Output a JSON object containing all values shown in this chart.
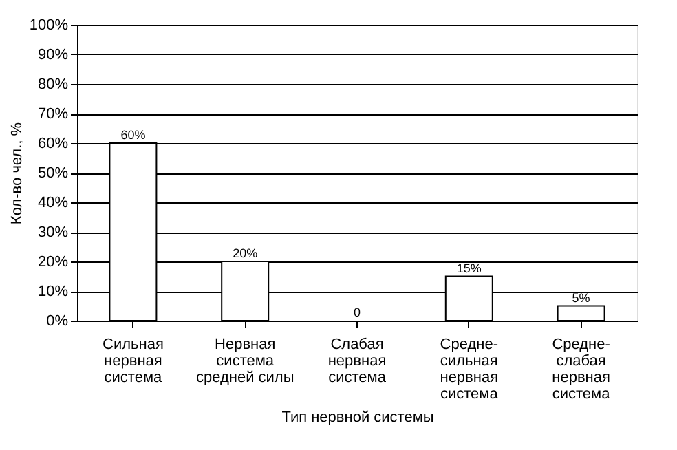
{
  "chart_data": {
    "type": "bar",
    "xlabel": "Тип нервной системы",
    "ylabel": "Кол-во чел., %",
    "categories": [
      "Сильная\nнервная\nсистема",
      "Нервная\nсистема\nсредней силы",
      "Слабая\nнервная\nсистема",
      "Средне-\nсильная\nнервная\nсистема",
      "Средне-\nслабая\nнервная\nсистема"
    ],
    "values": [
      60,
      20,
      0,
      15,
      5
    ],
    "value_labels": [
      "60%",
      "20%",
      "0",
      "15%",
      "5%"
    ],
    "color": "#ffffff",
    "ylim": [
      0,
      100
    ],
    "yticks": [
      {
        "value": 0,
        "label": "0%"
      },
      {
        "value": 10,
        "label": "10%"
      },
      {
        "value": 20,
        "label": "20%"
      },
      {
        "value": 30,
        "label": "30%"
      },
      {
        "value": 40,
        "label": "40%"
      },
      {
        "value": 50,
        "label": "50%"
      },
      {
        "value": 60,
        "label": "60%"
      },
      {
        "value": 70,
        "label": "70%"
      },
      {
        "value": 80,
        "label": "80%"
      },
      {
        "value": 90,
        "label": "90%"
      },
      {
        "value": 100,
        "label": "100%"
      }
    ],
    "grid": "y"
  }
}
